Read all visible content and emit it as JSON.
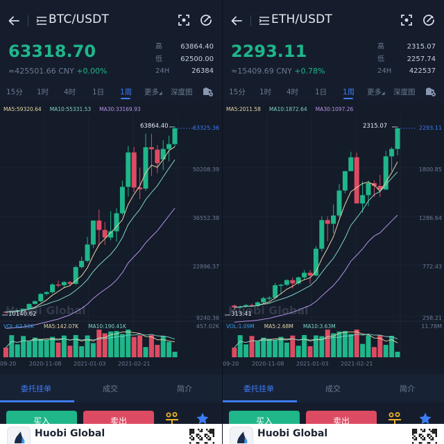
{
  "colors": {
    "up": "#1fb68a",
    "down": "#dd4b63",
    "accent": "#3d7cf5",
    "ma5": "#e8d7a6",
    "ma10": "#7fd3c4",
    "ma30": "#b793e6",
    "vol": "#3d9be9",
    "background": "#141b29"
  },
  "panels": [
    {
      "pair": "BTC/USDT",
      "price": "63318.70",
      "cny": "≈425501.66 CNY",
      "change": "+0.00%",
      "stats": [
        {
          "key": "高",
          "value": "63864.40"
        },
        {
          "key": "低",
          "value": "62500.00"
        },
        {
          "key": "24H",
          "value": "26384"
        }
      ],
      "tabs": [
        "15分",
        "1时",
        "4时",
        "1日",
        "1周",
        "更多",
        "深度图"
      ],
      "active_tab": "1周",
      "ma_legend": {
        "ma5": "MA5:59320.64",
        "ma10": "MA10:55331.53",
        "ma30": "MA30:33169.93"
      },
      "vol_legend": {
        "vol": "VOL:62.56K",
        "ma5": "MA5:142.07K",
        "ma10": "MA10:190.41K"
      },
      "y_axis": [
        "50208.39",
        "36552.38",
        "22896.37",
        "9240.36"
      ],
      "last_price_label": "63325.36",
      "high_marker": "63864.40",
      "low_marker": "10140.62",
      "vol_axis_max": "457.02K",
      "dates": [
        "09-20",
        "2020-11-08",
        "2021-01-03",
        "2021-02-21"
      ],
      "watermark": "Huobi Global",
      "bottom_tabs": [
        "委托挂单",
        "成交",
        "简介"
      ],
      "buy_label": "买入",
      "sell_label": "卖出",
      "banner_title": "Huobi Global"
    },
    {
      "pair": "ETH/USDT",
      "price": "2293.11",
      "cny": "≈15409.69 CNY",
      "change": "+0.78%",
      "stats": [
        {
          "key": "高",
          "value": "2315.07"
        },
        {
          "key": "低",
          "value": "2257.74"
        },
        {
          "key": "24H",
          "value": "422537"
        }
      ],
      "tabs": [
        "15分",
        "1时",
        "4时",
        "1日",
        "1周",
        "更多",
        "深度图"
      ],
      "active_tab": "1周",
      "ma_legend": {
        "ma5": "MA5:2011.58",
        "ma10": "MA10:1872.64",
        "ma30": "MA30:1097.26"
      },
      "vol_legend": {
        "vol": "VOL:1.09M",
        "ma5": "MA5:2.68M",
        "ma10": "MA10:3.63M"
      },
      "y_axis": [
        "1800.85",
        "1286.64",
        "772.43",
        "258.21"
      ],
      "last_price_label": "2293.11",
      "high_marker": "2315.07",
      "low_marker": "313.41",
      "vol_axis_max": "11.78M",
      "dates": [
        "09-20",
        "2020-11-08",
        "2021-01-03",
        "2021-02-21"
      ],
      "watermark": "Huobi Global",
      "bottom_tabs": [
        "委托挂单",
        "成交",
        "简介"
      ],
      "buy_label": "买入",
      "sell_label": "卖出",
      "banner_title": "Huobi Global"
    }
  ],
  "chart_data": [
    {
      "type": "candlestick",
      "title": "BTC/USDT 1周",
      "y_ticks": [
        9240.36,
        22896.37,
        36552.38,
        50208.39,
        63325.36
      ],
      "x_tick_labels": [
        "09-20",
        "2020-11-08",
        "2021-01-03",
        "2021-02-21"
      ],
      "candles": [
        [
          10600,
          10700,
          10200,
          10500
        ],
        [
          10500,
          10800,
          10300,
          10700
        ],
        [
          10700,
          11100,
          10500,
          11000
        ],
        [
          11000,
          11500,
          10800,
          11400
        ],
        [
          11400,
          12900,
          11200,
          12800
        ],
        [
          12800,
          13800,
          12700,
          13600
        ],
        [
          13600,
          15900,
          13200,
          15700
        ],
        [
          15700,
          16500,
          15300,
          16200
        ],
        [
          16200,
          18800,
          15800,
          18400
        ],
        [
          18400,
          19500,
          17600,
          18100
        ],
        [
          18200,
          19400,
          17400,
          19100
        ],
        [
          19100,
          19400,
          17900,
          18600
        ],
        [
          18600,
          23800,
          18300,
          23400
        ],
        [
          23400,
          26400,
          23000,
          25200
        ],
        [
          25200,
          32100,
          24800,
          29900
        ],
        [
          29900,
          34800,
          28900,
          36800
        ],
        [
          36800,
          40000,
          29500,
          34100
        ],
        [
          34100,
          36400,
          29800,
          31900
        ],
        [
          31900,
          39500,
          31100,
          33700
        ],
        [
          33700,
          40300,
          30700,
          38900
        ],
        [
          38900,
          48300,
          38400,
          46500
        ],
        [
          46500,
          58300,
          43700,
          56400
        ],
        [
          56400,
          58000,
          45000,
          46300
        ],
        [
          46300,
          52000,
          43000,
          45800
        ],
        [
          46000,
          61800,
          45400,
          57900
        ],
        [
          57900,
          61800,
          49600,
          57300
        ],
        [
          57200,
          58500,
          50500,
          53300
        ],
        [
          54400,
          59900,
          51300,
          57400
        ],
        [
          57400,
          61200,
          53800,
          58800
        ],
        [
          58800,
          63900,
          58000,
          63325
        ]
      ],
      "volume": {
        "ma_labels": [
          "VOL:62.56K",
          "MA5:142.07K",
          "MA10:190.41K"
        ],
        "max": "457.02K"
      }
    },
    {
      "type": "candlestick",
      "title": "ETH/USDT 1周",
      "y_ticks": [
        258.21,
        772.43,
        1286.64,
        1800.85,
        2293.11
      ],
      "x_tick_labels": [
        "09-20",
        "2020-11-08",
        "2021-01-03",
        "2021-02-21"
      ],
      "candles": [
        [
          375,
          385,
          330,
          355
        ],
        [
          355,
          375,
          340,
          365
        ],
        [
          365,
          390,
          350,
          380
        ],
        [
          380,
          395,
          360,
          370
        ],
        [
          370,
          420,
          355,
          410
        ],
        [
          410,
          470,
          400,
          455
        ],
        [
          455,
          480,
          430,
          460
        ],
        [
          460,
          620,
          440,
          595
        ],
        [
          595,
          610,
          500,
          600
        ],
        [
          600,
          660,
          590,
          650
        ],
        [
          650,
          680,
          560,
          615
        ],
        [
          615,
          690,
          600,
          680
        ],
        [
          680,
          760,
          650,
          730
        ],
        [
          730,
          760,
          610,
          700
        ],
        [
          700,
          1020,
          690,
          990
        ],
        [
          990,
          1340,
          960,
          1300
        ],
        [
          1300,
          1340,
          1070,
          1260
        ],
        [
          1260,
          1470,
          1160,
          1350
        ],
        [
          1350,
          1690,
          1330,
          1620
        ],
        [
          1620,
          1830,
          1590,
          1830
        ],
        [
          1830,
          2040,
          1840,
          1980
        ],
        [
          1980,
          2030,
          1500,
          1480
        ],
        [
          1480,
          1720,
          1380,
          1570
        ],
        [
          1570,
          1730,
          1450,
          1700
        ],
        [
          1700,
          1730,
          1550,
          1670
        ],
        [
          1670,
          1790,
          1550,
          1630
        ],
        [
          1630,
          2050,
          1640,
          1990
        ],
        [
          1990,
          2090,
          1830,
          2070
        ],
        [
          2070,
          2315,
          2000,
          2293
        ]
      ],
      "volume": {
        "ma_labels": [
          "VOL:1.09M",
          "MA5:2.68M",
          "MA10:3.63M"
        ],
        "max": "11.78M"
      }
    }
  ]
}
